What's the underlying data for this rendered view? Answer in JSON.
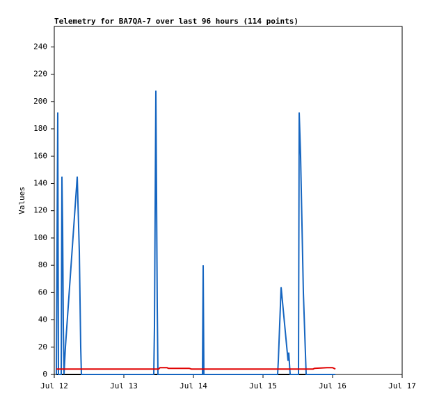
{
  "chart_data": {
    "type": "line",
    "title": "Telemetry for BA7QA-7 over last 96 hours (114 points)",
    "y_label": "Values",
    "xlim": [
      0,
      5
    ],
    "xticks": [
      {
        "value": 0,
        "label": "Jul 12"
      },
      {
        "value": 1,
        "label": "Jul 13"
      },
      {
        "value": 2,
        "label": "Jul 14"
      },
      {
        "value": 3,
        "label": "Jul 15"
      },
      {
        "value": 4,
        "label": "Jul 16"
      },
      {
        "value": 5,
        "label": "Jul 17"
      }
    ],
    "ylim": [
      0,
      255
    ],
    "yticks": [
      0,
      20,
      40,
      60,
      80,
      100,
      120,
      140,
      160,
      180,
      200,
      220,
      240
    ],
    "series": [
      {
        "color": "#000000",
        "x": [
          0.03,
          4.04
        ],
        "values": [
          0,
          0
        ]
      },
      {
        "color": "#1565c0",
        "x": [
          0.03,
          0.05,
          0.06,
          0.1,
          0.11,
          0.12,
          0.13,
          0.14,
          0.16,
          0.33,
          0.36,
          0.38,
          0.39,
          1.43,
          1.44,
          1.46,
          1.48,
          1.49,
          2.13,
          2.14,
          2.15,
          3.21,
          3.22,
          3.26,
          3.36,
          3.37,
          3.39,
          3.51,
          3.52,
          3.54,
          3.58,
          3.62,
          4.04
        ],
        "values": [
          0,
          192,
          0,
          0,
          145,
          108,
          36,
          0,
          20,
          145,
          90,
          20,
          0,
          0,
          35,
          208,
          50,
          0,
          0,
          80,
          0,
          0,
          10,
          64,
          10,
          16,
          0,
          0,
          192,
          160,
          60,
          0,
          0
        ]
      },
      {
        "color": "#e00000",
        "x": [
          0.03,
          1.5,
          1.52,
          1.62,
          1.64,
          1.94,
          1.97,
          3.72,
          3.74,
          3.92,
          4.0,
          4.04
        ],
        "values": [
          4,
          4,
          5,
          5,
          4.5,
          4.5,
          4,
          4,
          4.5,
          5,
          5,
          4
        ]
      }
    ]
  }
}
